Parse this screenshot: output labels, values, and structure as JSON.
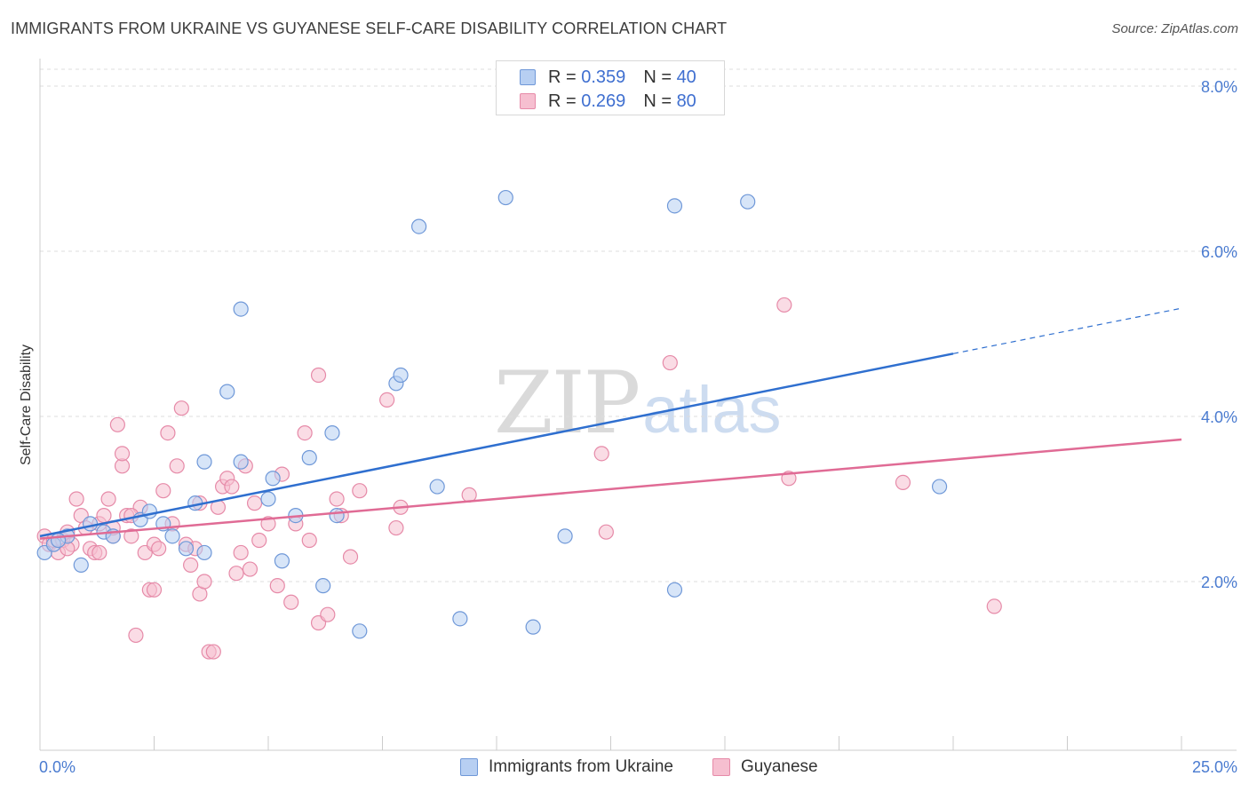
{
  "title": "IMMIGRANTS FROM UKRAINE VS GUYANESE SELF-CARE DISABILITY CORRELATION CHART",
  "source": "Source: ZipAtlas.com",
  "watermark": {
    "zip": "ZIP",
    "atlas": "atlas"
  },
  "legend": {
    "rows": [
      {
        "r_label": "R = ",
        "r_value": "0.359",
        "n_label": "N = ",
        "n_value": "40"
      },
      {
        "r_label": "R = ",
        "r_value": "0.269",
        "n_label": "N = ",
        "n_value": "80"
      }
    ]
  },
  "colors": {
    "ukraine_fill": "#b7cff2",
    "ukraine_stroke": "#6f98d8",
    "ukraine_line": "#2f6fcf",
    "guyanese_fill": "#f6bfd0",
    "guyanese_stroke": "#e68aa8",
    "guyanese_line": "#e06b95",
    "tick_text": "#4a7bd0",
    "grid": "#dddddd"
  },
  "chart_data": {
    "type": "scatter",
    "title": "IMMIGRANTS FROM UKRAINE VS GUYANESE SELF-CARE DISABILITY CORRELATION CHART",
    "xlabel": "",
    "ylabel": "Self-Care Disability",
    "xlim": [
      0,
      25
    ],
    "ylim": [
      0,
      8.3
    ],
    "x_tick_labels": [
      "0.0%",
      "25.0%"
    ],
    "y_ticks": [
      2,
      4,
      6,
      8
    ],
    "y_tick_labels": [
      "2.0%",
      "4.0%",
      "6.0%",
      "8.0%"
    ],
    "grid": "horizontal dashed",
    "legend_position": "top-center",
    "series": [
      {
        "name": "Immigrants from Ukraine",
        "color": "#6f98d8",
        "trend": {
          "x": [
            0,
            20,
            25
          ],
          "y": [
            2.55,
            4.76,
            5.31
          ],
          "dashed_from_x": 20
        },
        "points": [
          [
            0.1,
            2.35
          ],
          [
            0.3,
            2.45
          ],
          [
            0.6,
            2.55
          ],
          [
            0.9,
            2.2
          ],
          [
            1.1,
            2.7
          ],
          [
            1.4,
            2.6
          ],
          [
            1.6,
            2.55
          ],
          [
            2.2,
            2.75
          ],
          [
            2.4,
            2.85
          ],
          [
            2.7,
            2.7
          ],
          [
            2.9,
            2.55
          ],
          [
            3.2,
            2.4
          ],
          [
            3.4,
            2.95
          ],
          [
            3.6,
            2.35
          ],
          [
            3.6,
            3.45
          ],
          [
            4.1,
            4.3
          ],
          [
            4.4,
            5.3
          ],
          [
            4.4,
            3.45
          ],
          [
            5.0,
            3.0
          ],
          [
            5.1,
            3.25
          ],
          [
            5.3,
            2.25
          ],
          [
            5.6,
            2.8
          ],
          [
            5.9,
            3.5
          ],
          [
            6.2,
            1.95
          ],
          [
            6.4,
            3.8
          ],
          [
            6.5,
            2.8
          ],
          [
            7.0,
            1.4
          ],
          [
            7.8,
            4.4
          ],
          [
            7.9,
            4.5
          ],
          [
            8.3,
            6.3
          ],
          [
            8.7,
            3.15
          ],
          [
            9.2,
            1.55
          ],
          [
            10.2,
            6.65
          ],
          [
            10.8,
            1.45
          ],
          [
            11.5,
            2.55
          ],
          [
            13.9,
            1.9
          ],
          [
            13.9,
            6.55
          ],
          [
            15.5,
            6.6
          ],
          [
            19.7,
            3.15
          ],
          [
            0.4,
            2.5
          ]
        ]
      },
      {
        "name": "Guyanese",
        "color": "#e68aa8",
        "trend": {
          "x": [
            0,
            25
          ],
          "y": [
            2.52,
            3.72
          ]
        },
        "points": [
          [
            0.1,
            2.55
          ],
          [
            0.2,
            2.45
          ],
          [
            0.3,
            2.5
          ],
          [
            0.4,
            2.35
          ],
          [
            0.5,
            2.5
          ],
          [
            0.6,
            2.6
          ],
          [
            0.7,
            2.45
          ],
          [
            0.8,
            3.0
          ],
          [
            0.9,
            2.8
          ],
          [
            1.0,
            2.65
          ],
          [
            1.1,
            2.4
          ],
          [
            1.2,
            2.35
          ],
          [
            1.3,
            2.7
          ],
          [
            1.4,
            2.8
          ],
          [
            1.5,
            3.0
          ],
          [
            1.6,
            2.55
          ],
          [
            1.6,
            2.65
          ],
          [
            1.7,
            3.9
          ],
          [
            1.8,
            3.4
          ],
          [
            1.8,
            3.55
          ],
          [
            1.9,
            2.8
          ],
          [
            2.0,
            2.55
          ],
          [
            2.1,
            1.35
          ],
          [
            2.2,
            2.9
          ],
          [
            2.3,
            2.35
          ],
          [
            2.4,
            1.9
          ],
          [
            2.5,
            2.45
          ],
          [
            2.5,
            1.9
          ],
          [
            2.6,
            2.4
          ],
          [
            2.7,
            3.1
          ],
          [
            2.8,
            3.8
          ],
          [
            2.9,
            2.7
          ],
          [
            3.0,
            3.4
          ],
          [
            3.1,
            4.1
          ],
          [
            3.2,
            2.45
          ],
          [
            3.3,
            2.2
          ],
          [
            3.4,
            2.4
          ],
          [
            3.5,
            2.95
          ],
          [
            3.5,
            1.85
          ],
          [
            3.6,
            2.0
          ],
          [
            3.7,
            1.15
          ],
          [
            3.8,
            1.15
          ],
          [
            3.9,
            2.9
          ],
          [
            4.0,
            3.15
          ],
          [
            4.1,
            3.25
          ],
          [
            4.2,
            3.15
          ],
          [
            4.3,
            2.1
          ],
          [
            4.4,
            2.35
          ],
          [
            4.5,
            3.4
          ],
          [
            4.6,
            2.15
          ],
          [
            4.7,
            2.95
          ],
          [
            4.8,
            2.5
          ],
          [
            5.0,
            2.7
          ],
          [
            5.2,
            1.95
          ],
          [
            5.3,
            3.3
          ],
          [
            5.5,
            1.75
          ],
          [
            5.6,
            2.7
          ],
          [
            5.8,
            3.8
          ],
          [
            5.9,
            2.5
          ],
          [
            6.1,
            1.5
          ],
          [
            6.1,
            4.5
          ],
          [
            6.3,
            1.6
          ],
          [
            6.5,
            3.0
          ],
          [
            6.6,
            2.8
          ],
          [
            6.8,
            2.3
          ],
          [
            7.0,
            3.1
          ],
          [
            7.6,
            4.2
          ],
          [
            7.8,
            2.65
          ],
          [
            7.9,
            2.9
          ],
          [
            9.4,
            3.05
          ],
          [
            12.3,
            3.55
          ],
          [
            12.4,
            2.6
          ],
          [
            13.8,
            4.65
          ],
          [
            16.3,
            5.35
          ],
          [
            16.4,
            3.25
          ],
          [
            18.9,
            3.2
          ],
          [
            20.9,
            1.7
          ],
          [
            2.0,
            2.8
          ],
          [
            1.3,
            2.35
          ],
          [
            0.6,
            2.4
          ]
        ]
      }
    ]
  },
  "bottom_legend": {
    "ukraine": "Immigrants from Ukraine",
    "guyanese": "Guyanese"
  }
}
